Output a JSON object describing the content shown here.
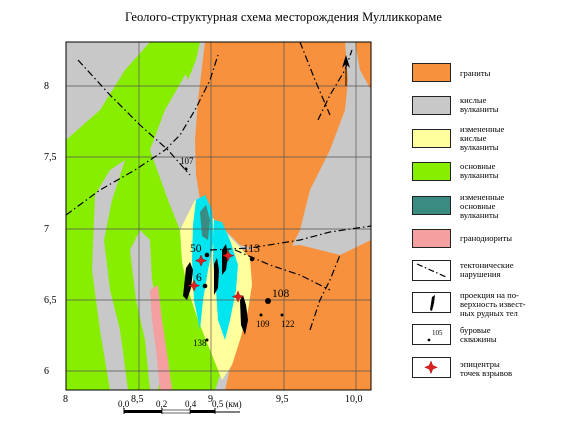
{
  "title": "Геолого-структурная схема месторождения Мулликкораме",
  "map": {
    "x_ticks": [
      "8",
      "8,5",
      "9",
      "9,5",
      "10,0"
    ],
    "y_ticks": [
      "8",
      "7,5",
      "7",
      "6,5",
      "6"
    ],
    "scale_labels": [
      "0,0",
      "0,2",
      "0,4",
      "0,5 (км)"
    ],
    "point_labels": {
      "p107": "107",
      "p50": "50",
      "p113": "113",
      "p6": "6",
      "p108": "108",
      "p109": "109",
      "p122": "122",
      "p138": "138"
    },
    "north_label": "N"
  },
  "colors": {
    "granite": "#f7913d",
    "acid_volcanics": "#c8c8c8",
    "altered_acid": "#ffff9e",
    "basic_volcanics": "#88ee00",
    "altered_basic": "#3a8c83",
    "granodiorite": "#f4a0a0",
    "cyan_zone": "#00e5f0"
  },
  "legend": [
    {
      "key": "granite",
      "label": "граниты"
    },
    {
      "key": "acid",
      "label": "кислые\nвулканиты"
    },
    {
      "key": "altered_acid",
      "label": "измененные\nкислые\nвулканиты"
    },
    {
      "key": "basic",
      "label": "основные\nвулканиты"
    },
    {
      "key": "altered_basic",
      "label": "измененные\nосновные\nвулканиты"
    },
    {
      "key": "granodiorite",
      "label": "гранодиориты"
    },
    {
      "key": "faults",
      "label": "тектонические\nнарушения"
    },
    {
      "key": "ore",
      "label": "проекция на по-\nверхность извест-\nных рудных тел"
    },
    {
      "key": "wells",
      "label": "буровые\nскважины",
      "sample_number": "105"
    },
    {
      "key": "epicenters",
      "label": "эпицентры\nточек взрывов"
    }
  ]
}
